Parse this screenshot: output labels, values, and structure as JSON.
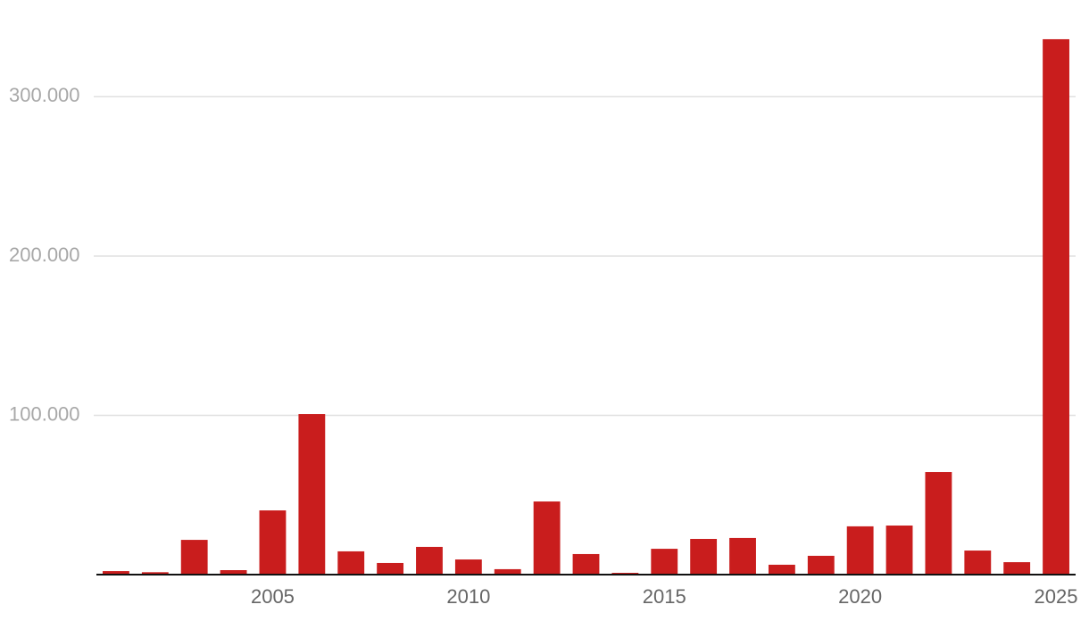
{
  "chart_data": {
    "type": "bar",
    "x": [
      2001,
      2002,
      2003,
      2004,
      2005,
      2006,
      2007,
      2008,
      2009,
      2010,
      2011,
      2012,
      2013,
      2014,
      2015,
      2016,
      2017,
      2018,
      2019,
      2020,
      2021,
      2022,
      2023,
      2024,
      2025
    ],
    "values": [
      2200,
      1500,
      21800,
      2800,
      40300,
      100800,
      14600,
      7300,
      17400,
      9500,
      3400,
      45900,
      12900,
      1100,
      16200,
      22400,
      23000,
      6200,
      11800,
      30300,
      30800,
      64400,
      15100,
      7800,
      336100
    ],
    "color": "#c91d1d",
    "xlim": [
      2000.5,
      2025.5
    ],
    "xticks": [
      2005,
      2010,
      2015,
      2020,
      2025
    ],
    "ylim": [
      0,
      340000
    ],
    "yticks": [
      {
        "value": 100000,
        "label": "100.000"
      },
      {
        "value": 200000,
        "label": "200.000"
      },
      {
        "value": 300000,
        "label": "300.000"
      }
    ],
    "grid": true
  }
}
